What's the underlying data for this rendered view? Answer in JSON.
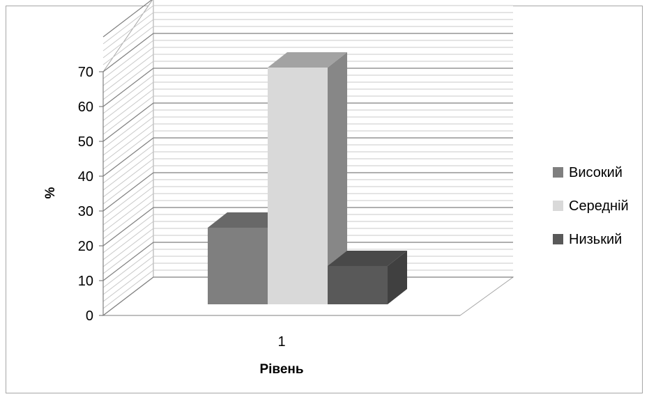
{
  "chart_data": {
    "type": "bar",
    "title": "",
    "xlabel": "Рівень",
    "ylabel": "%",
    "categories": [
      "1"
    ],
    "ylim": [
      0,
      70
    ],
    "yticks": [
      "0",
      "10",
      "20",
      "30",
      "40",
      "50",
      "60",
      "70"
    ],
    "grid": true,
    "legend": "right",
    "series": [
      {
        "name": "Високий",
        "values": [
          22
        ],
        "color": "#7f7f7f"
      },
      {
        "name": "Середній",
        "values": [
          68
        ],
        "color": "#d9d9d9"
      },
      {
        "name": "Низький",
        "values": [
          11
        ],
        "color": "#595959"
      }
    ]
  }
}
